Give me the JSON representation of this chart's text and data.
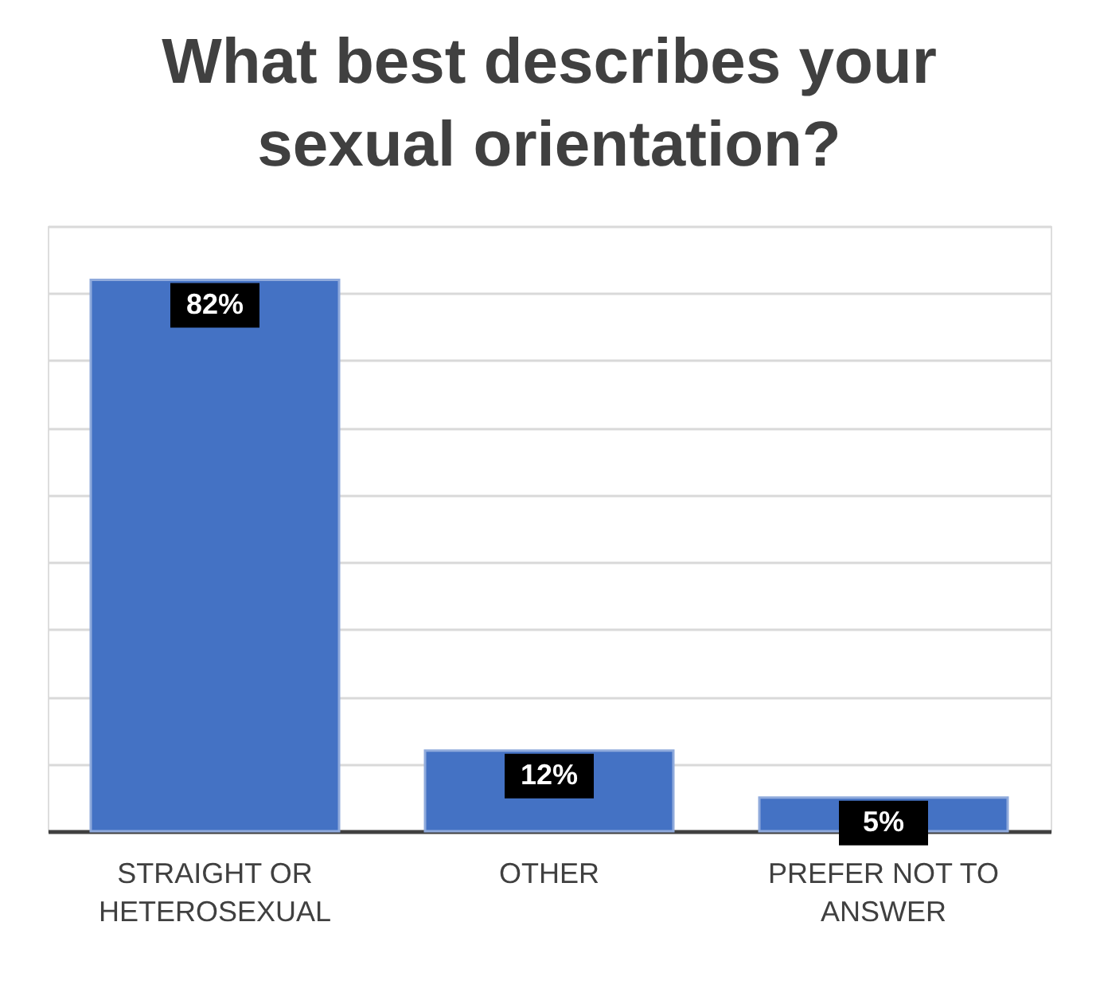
{
  "chart_data": {
    "type": "bar",
    "title": "What best describes your sexual orientation?",
    "categories": [
      "STRAIGHT OR HETEROSEXUAL",
      "OTHER",
      "PREFER NOT TO ANSWER"
    ],
    "values": [
      82,
      12,
      5
    ],
    "color": "#4472c4",
    "value_labels": [
      "82%",
      "12%",
      "5%"
    ],
    "grid": "y",
    "tick_labels": "x"
  }
}
